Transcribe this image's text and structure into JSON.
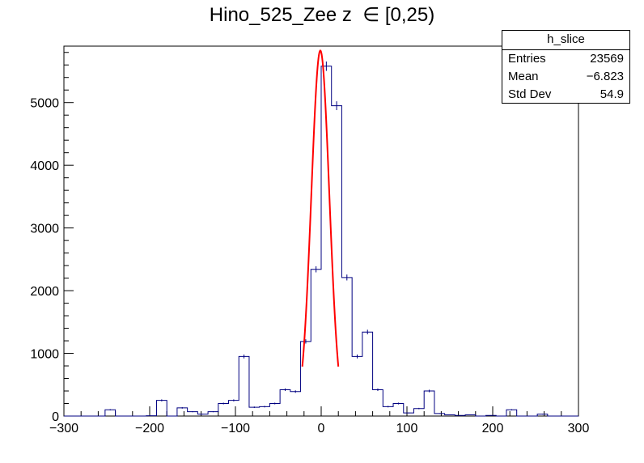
{
  "chart_data": {
    "type": "histogram",
    "title": "Hino_525_Zee z  ∈ [0,25)",
    "xlabel": "",
    "ylabel": "",
    "xlim": [
      -300,
      300
    ],
    "ylim": [
      0,
      5900
    ],
    "x_ticks": [
      -300,
      -200,
      -100,
      0,
      100,
      200,
      300
    ],
    "x_tick_labels": [
      "−300",
      "−200",
      "−100",
      "0",
      "100",
      "200",
      "300"
    ],
    "y_ticks": [
      0,
      1000,
      2000,
      3000,
      4000,
      5000
    ],
    "y_tick_labels": [
      "0",
      "1000",
      "2000",
      "3000",
      "4000",
      "5000"
    ],
    "bin_width": 12,
    "bin_start": -300,
    "bin_counts": [
      0,
      0,
      0,
      0,
      100,
      0,
      0,
      0,
      5,
      250,
      0,
      130,
      70,
      30,
      70,
      200,
      250,
      950,
      140,
      150,
      200,
      420,
      390,
      1190,
      2340,
      5580,
      4950,
      2210,
      950,
      1340,
      420,
      150,
      200,
      50,
      120,
      400,
      40,
      20,
      10,
      20,
      0,
      10,
      0,
      100,
      0,
      0,
      30,
      0,
      0,
      0
    ],
    "hist_color": "#000080",
    "fit": {
      "type": "gaus",
      "amplitude": 5830,
      "mean": -1,
      "sigma": 10.5,
      "x_range": [
        -22,
        20
      ],
      "color": "#ff0000"
    },
    "grid": false,
    "stats_box": {
      "title": "h_slice",
      "rows": [
        {
          "label": "Entries",
          "value": "23569"
        },
        {
          "label": "Mean",
          "value": "−6.823"
        },
        {
          "label": "Std Dev",
          "value": "54.9"
        }
      ]
    }
  }
}
